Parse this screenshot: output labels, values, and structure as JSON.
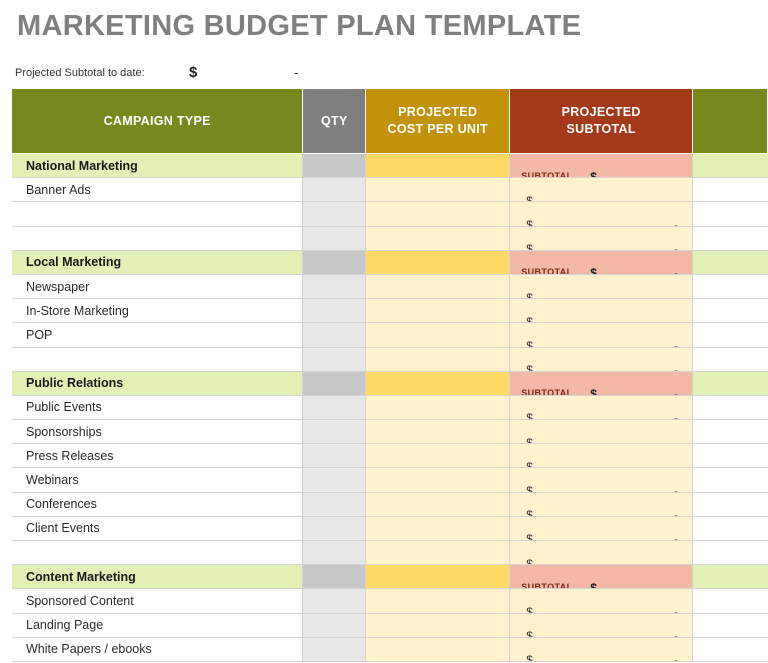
{
  "title": "MARKETING BUDGET PLAN TEMPLATE",
  "projected_to_date": {
    "label": "Projected Subtotal to date:",
    "currency": "$",
    "value": "-"
  },
  "columns": {
    "campaign_type": "CAMPAIGN TYPE",
    "qty": "QTY",
    "projected_cost_line1": "PROJECTED",
    "projected_cost_line2": "COST PER UNIT",
    "projected_subtotal_line1": "PROJECTED",
    "projected_subtotal_line2": "SUBTOTAL"
  },
  "subtotal_label": "SUBTOTAL",
  "currency": "$",
  "empty_value": "-",
  "rows": [
    {
      "kind": "section",
      "label": "National Marketing"
    },
    {
      "kind": "item",
      "label": "Banner Ads"
    },
    {
      "kind": "item",
      "label": ""
    },
    {
      "kind": "item",
      "label": ""
    },
    {
      "kind": "section",
      "label": "Local Marketing"
    },
    {
      "kind": "item",
      "label": "Newspaper"
    },
    {
      "kind": "item",
      "label": "In-Store Marketing"
    },
    {
      "kind": "item",
      "label": "POP"
    },
    {
      "kind": "item",
      "label": ""
    },
    {
      "kind": "section",
      "label": "Public Relations"
    },
    {
      "kind": "item",
      "label": "Public Events"
    },
    {
      "kind": "item",
      "label": "Sponsorships"
    },
    {
      "kind": "item",
      "label": "Press Releases"
    },
    {
      "kind": "item",
      "label": "Webinars"
    },
    {
      "kind": "item",
      "label": "Conferences"
    },
    {
      "kind": "item",
      "label": "Client Events"
    },
    {
      "kind": "item",
      "label": ""
    },
    {
      "kind": "section",
      "label": "Content Marketing"
    },
    {
      "kind": "item",
      "label": "Sponsored Content"
    },
    {
      "kind": "item",
      "label": "Landing Page"
    },
    {
      "kind": "item",
      "label": "White Papers / ebooks"
    }
  ]
}
